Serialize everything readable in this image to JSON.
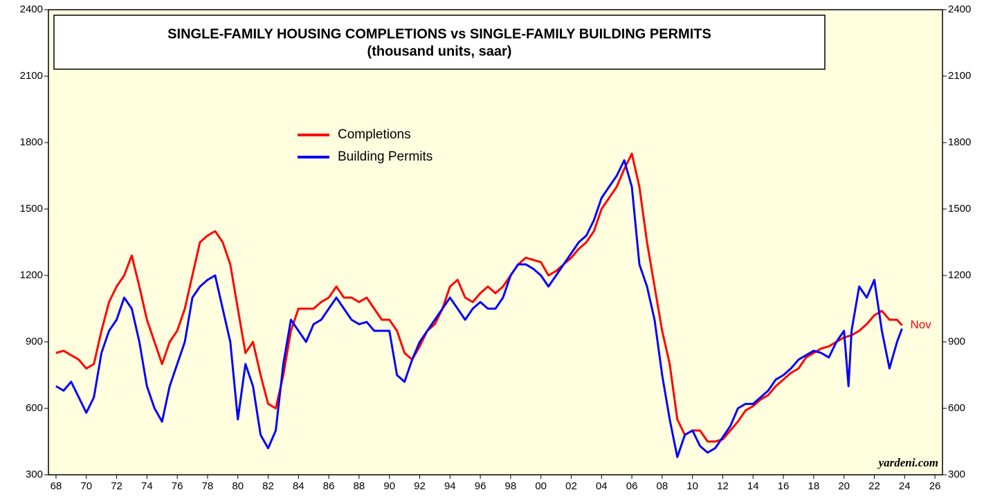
{
  "chart_data": {
    "type": "line",
    "title": "SINGLE-FAMILY HOUSING COMPLETIONS vs SINGLE-FAMILY BUILDING PERMITS",
    "subtitle": "(thousand units, saar)",
    "annotation": "Nov",
    "watermark": "yardeni.com",
    "legend": "upper left",
    "xlim": [
      1967.5,
      2026.5
    ],
    "xticks": [
      {
        "value": 1968,
        "label": "68"
      },
      {
        "value": 1970,
        "label": "70"
      },
      {
        "value": 1972,
        "label": "72"
      },
      {
        "value": 1974,
        "label": "74"
      },
      {
        "value": 1976,
        "label": "76"
      },
      {
        "value": 1978,
        "label": "78"
      },
      {
        "value": 1980,
        "label": "80"
      },
      {
        "value": 1982,
        "label": "82"
      },
      {
        "value": 1984,
        "label": "84"
      },
      {
        "value": 1986,
        "label": "86"
      },
      {
        "value": 1988,
        "label": "88"
      },
      {
        "value": 1990,
        "label": "90"
      },
      {
        "value": 1992,
        "label": "92"
      },
      {
        "value": 1994,
        "label": "94"
      },
      {
        "value": 1996,
        "label": "96"
      },
      {
        "value": 1998,
        "label": "98"
      },
      {
        "value": 2000,
        "label": "00"
      },
      {
        "value": 2002,
        "label": "02"
      },
      {
        "value": 2004,
        "label": "04"
      },
      {
        "value": 2006,
        "label": "06"
      },
      {
        "value": 2008,
        "label": "08"
      },
      {
        "value": 2010,
        "label": "10"
      },
      {
        "value": 2012,
        "label": "12"
      },
      {
        "value": 2014,
        "label": "14"
      },
      {
        "value": 2016,
        "label": "16"
      },
      {
        "value": 2018,
        "label": "18"
      },
      {
        "value": 2020,
        "label": "20"
      },
      {
        "value": 2022,
        "label": "22"
      },
      {
        "value": 2024,
        "label": "24"
      },
      {
        "value": 2026,
        "label": "26"
      }
    ],
    "ylim": [
      300,
      2400
    ],
    "yticks": [
      300,
      600,
      900,
      1200,
      1500,
      1800,
      2100,
      2400
    ],
    "y2lim": [
      300,
      2400
    ],
    "y2ticks": [
      300,
      600,
      900,
      1200,
      1500,
      1800,
      2100,
      2400
    ],
    "series": [
      {
        "name": "Completions",
        "color": "#ff0000",
        "x": [
          1968,
          1968.5,
          1969,
          1969.5,
          1970,
          1970.5,
          1971,
          1971.5,
          1972,
          1972.5,
          1973,
          1973.5,
          1974,
          1974.5,
          1975,
          1975.5,
          1976,
          1976.5,
          1977,
          1977.5,
          1978,
          1978.5,
          1979,
          1979.5,
          1980,
          1980.5,
          1981,
          1981.5,
          1982,
          1982.5,
          1983,
          1983.5,
          1984,
          1984.5,
          1985,
          1985.5,
          1986,
          1986.5,
          1987,
          1987.5,
          1988,
          1988.5,
          1989,
          1989.5,
          1990,
          1990.5,
          1991,
          1991.5,
          1992,
          1992.5,
          1993,
          1993.5,
          1994,
          1994.5,
          1995,
          1995.5,
          1996,
          1996.5,
          1997,
          1997.5,
          1998,
          1998.5,
          1999,
          1999.5,
          2000,
          2000.5,
          2001,
          2001.5,
          2002,
          2002.5,
          2003,
          2003.5,
          2004,
          2004.5,
          2005,
          2005.5,
          2006,
          2006.5,
          2007,
          2007.5,
          2008,
          2008.5,
          2009,
          2009.5,
          2010,
          2010.5,
          2011,
          2011.5,
          2012,
          2012.5,
          2013,
          2013.5,
          2014,
          2014.5,
          2015,
          2015.5,
          2016,
          2016.5,
          2017,
          2017.5,
          2018,
          2018.5,
          2019,
          2019.5,
          2020,
          2020.5,
          2021,
          2021.5,
          2022,
          2022.5,
          2023,
          2023.5,
          2023.83
        ],
        "values": [
          850,
          860,
          840,
          820,
          780,
          800,
          950,
          1080,
          1150,
          1200,
          1290,
          1150,
          1000,
          900,
          800,
          900,
          950,
          1050,
          1200,
          1350,
          1380,
          1400,
          1350,
          1250,
          1050,
          850,
          900,
          750,
          620,
          600,
          750,
          950,
          1050,
          1050,
          1050,
          1080,
          1100,
          1150,
          1100,
          1100,
          1080,
          1100,
          1050,
          1000,
          1000,
          950,
          850,
          820,
          880,
          950,
          980,
          1050,
          1150,
          1180,
          1100,
          1080,
          1120,
          1150,
          1120,
          1150,
          1200,
          1250,
          1280,
          1270,
          1260,
          1200,
          1220,
          1250,
          1280,
          1320,
          1350,
          1400,
          1500,
          1550,
          1600,
          1680,
          1750,
          1600,
          1350,
          1150,
          950,
          800,
          550,
          480,
          500,
          500,
          450,
          450,
          460,
          500,
          540,
          590,
          610,
          640,
          660,
          700,
          730,
          760,
          780,
          830,
          850,
          870,
          880,
          900,
          920,
          930,
          950,
          980,
          1020,
          1040,
          1000,
          1000,
          975
        ]
      },
      {
        "name": "Building Permits",
        "color": "#0000ff",
        "x": [
          1968,
          1968.5,
          1969,
          1969.5,
          1970,
          1970.5,
          1971,
          1971.5,
          1972,
          1972.5,
          1973,
          1973.5,
          1974,
          1974.5,
          1975,
          1975.5,
          1976,
          1976.5,
          1977,
          1977.5,
          1978,
          1978.5,
          1979,
          1979.5,
          1980,
          1980.5,
          1981,
          1981.5,
          1982,
          1982.5,
          1983,
          1983.5,
          1984,
          1984.5,
          1985,
          1985.5,
          1986,
          1986.5,
          1987,
          1987.5,
          1988,
          1988.5,
          1989,
          1989.5,
          1990,
          1990.5,
          1991,
          1991.5,
          1992,
          1992.5,
          1993,
          1993.5,
          1994,
          1994.5,
          1995,
          1995.5,
          1996,
          1996.5,
          1997,
          1997.5,
          1998,
          1998.5,
          1999,
          1999.5,
          2000,
          2000.5,
          2001,
          2001.5,
          2002,
          2002.5,
          2003,
          2003.5,
          2004,
          2004.5,
          2005,
          2005.5,
          2006,
          2006.5,
          2007,
          2007.5,
          2008,
          2008.5,
          2009,
          2009.5,
          2010,
          2010.5,
          2011,
          2011.5,
          2012,
          2012.5,
          2013,
          2013.5,
          2014,
          2014.5,
          2015,
          2015.5,
          2016,
          2016.5,
          2017,
          2017.5,
          2018,
          2018.5,
          2019,
          2019.5,
          2020,
          2020.3,
          2020.5,
          2021,
          2021.5,
          2022,
          2022.5,
          2023,
          2023.5,
          2023.83
        ],
        "values": [
          700,
          680,
          720,
          650,
          580,
          650,
          850,
          950,
          1000,
          1100,
          1050,
          900,
          700,
          600,
          540,
          700,
          800,
          900,
          1100,
          1150,
          1180,
          1200,
          1050,
          900,
          550,
          800,
          700,
          480,
          420,
          500,
          800,
          1000,
          950,
          900,
          980,
          1000,
          1050,
          1100,
          1050,
          1000,
          980,
          990,
          950,
          950,
          950,
          750,
          720,
          820,
          900,
          950,
          1000,
          1050,
          1100,
          1050,
          1000,
          1050,
          1080,
          1050,
          1050,
          1100,
          1200,
          1250,
          1250,
          1230,
          1200,
          1150,
          1200,
          1250,
          1300,
          1350,
          1380,
          1450,
          1550,
          1600,
          1650,
          1720,
          1600,
          1250,
          1150,
          1000,
          750,
          550,
          380,
          480,
          500,
          430,
          400,
          420,
          470,
          520,
          600,
          620,
          620,
          650,
          680,
          730,
          750,
          780,
          820,
          840,
          860,
          850,
          830,
          900,
          950,
          700,
          950,
          1150,
          1100,
          1180,
          950,
          780,
          900,
          960
        ]
      }
    ]
  }
}
